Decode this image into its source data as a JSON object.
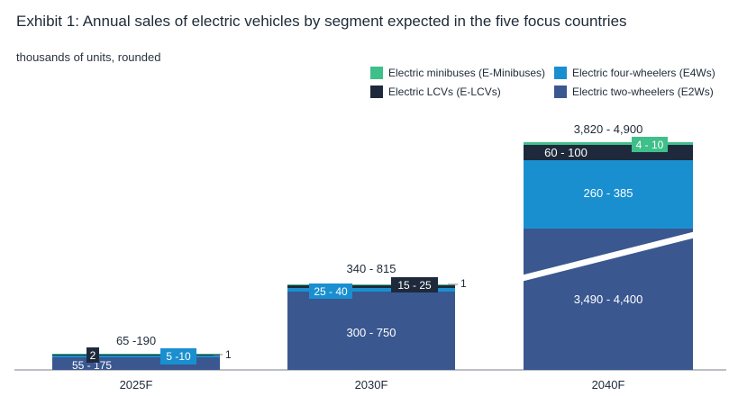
{
  "title": "Exhibit 1: Annual sales of electric vehicles by segment expected in the five focus countries",
  "subtitle": "thousands of units, rounded",
  "legend": [
    {
      "label": "Electric minibuses (E-Minibuses)",
      "color": "#3fbf8a"
    },
    {
      "label": "Electric four-wheelers (E4Ws)",
      "color": "#1a8fd0"
    },
    {
      "label": "Electric LCVs (E-LCVs)",
      "color": "#1e2a3b"
    },
    {
      "label": "Electric two-wheelers (E2Ws)",
      "color": "#3a5790"
    }
  ],
  "chart_data": {
    "type": "bar",
    "stacked": true,
    "unit": "thousands of units",
    "categories": [
      "2025F",
      "2030F",
      "2040F"
    ],
    "totals": [
      "65 -190",
      "340 - 815",
      "3,820 - 4,900"
    ],
    "axis_break_on_last_bar": true,
    "series": [
      {
        "name": "Electric two-wheelers (E2Ws)",
        "color": "#3a5790",
        "ranges": [
          [
            55,
            175
          ],
          [
            300,
            750
          ],
          [
            3490,
            4400
          ]
        ],
        "labels": [
          "55 - 175",
          "300 - 750",
          "3,490 - 4,400"
        ]
      },
      {
        "name": "Electric four-wheelers (E4Ws)",
        "color": "#1a8fd0",
        "ranges": [
          [
            5,
            10
          ],
          [
            25,
            40
          ],
          [
            260,
            385
          ]
        ],
        "labels": [
          "5 -10",
          "25 - 40",
          "260 - 385"
        ]
      },
      {
        "name": "Electric LCVs (E-LCVs)",
        "color": "#1e2a3b",
        "ranges": [
          [
            2,
            2
          ],
          [
            15,
            25
          ],
          [
            60,
            100
          ]
        ],
        "labels": [
          "2",
          "15 - 25",
          "60 - 100"
        ]
      },
      {
        "name": "Electric minibuses (E-Minibuses)",
        "color": "#3fbf8a",
        "ranges": [
          [
            1,
            1
          ],
          [
            1,
            1
          ],
          [
            4,
            10
          ]
        ],
        "labels": [
          "1",
          "1",
          "4 - 10"
        ]
      }
    ]
  }
}
